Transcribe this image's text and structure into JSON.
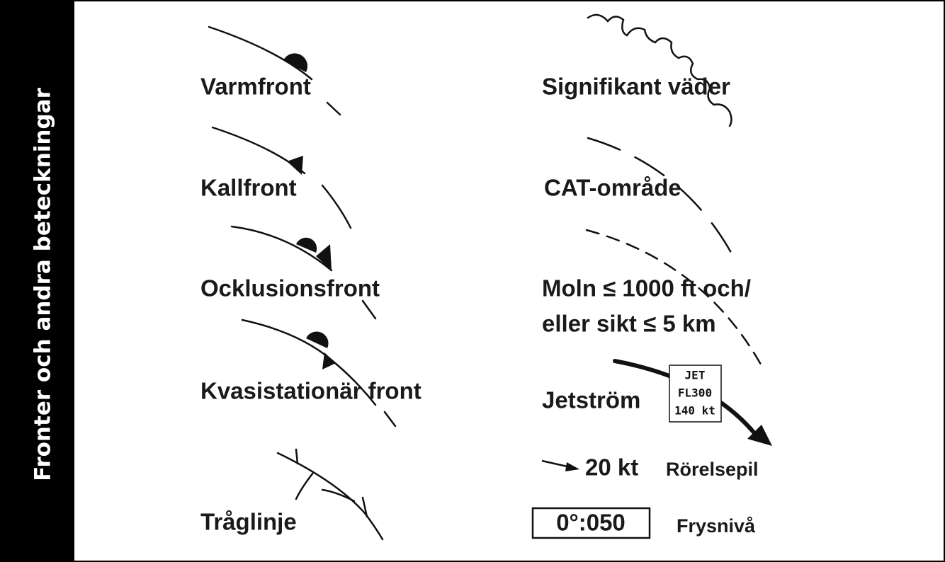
{
  "sidebar_title": "Fronter och andra beteckningar",
  "left_items": [
    "Varmfront",
    "Kallfront",
    "Ocklusionsfront",
    "Kvasistationär front",
    "Tråglinje"
  ],
  "right_items": {
    "significant_weather": "Signifikant väder",
    "cat": "CAT-område",
    "clouds": [
      "Moln ≤ 1000 ft och/",
      "eller sikt ≤ 5 km"
    ],
    "jet": {
      "label": "Jetström",
      "box": [
        "JET",
        "FL300",
        "140 kt"
      ]
    },
    "movement": {
      "speed": "20 kt",
      "label": "Rörelsepil"
    },
    "freezing": {
      "value": "0°:050",
      "label": "Frysnivå"
    }
  }
}
